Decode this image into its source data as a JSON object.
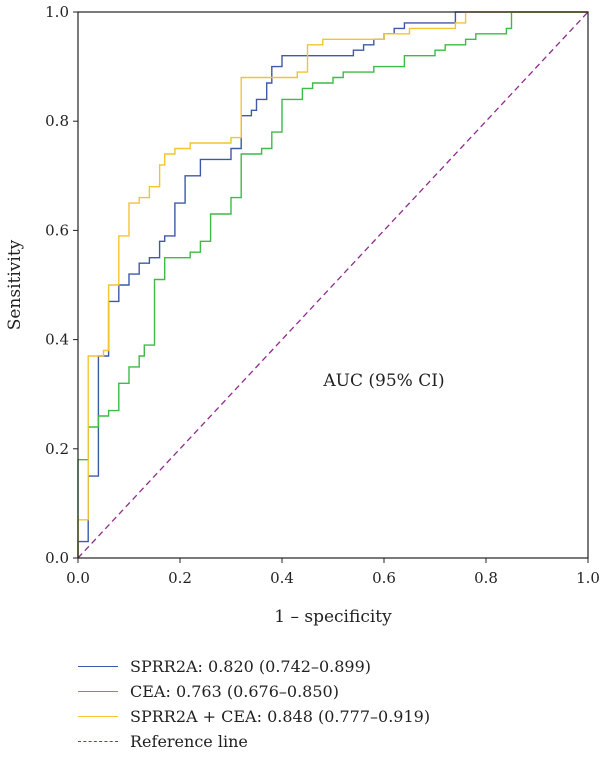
{
  "chart_data": {
    "type": "line",
    "xlabel": "1 – specificity",
    "ylabel": "Sensitivity",
    "xlim": [
      0,
      1
    ],
    "ylim": [
      0,
      1
    ],
    "xticks": [
      "0.0",
      "0.2",
      "0.4",
      "0.6",
      "0.8",
      "1.0"
    ],
    "yticks": [
      "0.0",
      "0.2",
      "0.4",
      "0.6",
      "0.8",
      "1.0"
    ],
    "annotation": "AUC (95% CI)",
    "grid": false,
    "legend_position": "bottom",
    "series": [
      {
        "name": "SPRR2A: 0.820 (0.742–0.899)",
        "color": "#3c5aa8",
        "x": [
          0.0,
          0.0,
          0.02,
          0.02,
          0.04,
          0.04,
          0.06,
          0.06,
          0.08,
          0.08,
          0.1,
          0.1,
          0.12,
          0.12,
          0.14,
          0.14,
          0.16,
          0.16,
          0.17,
          0.17,
          0.19,
          0.19,
          0.21,
          0.21,
          0.24,
          0.24,
          0.3,
          0.3,
          0.32,
          0.32,
          0.34,
          0.34,
          0.35,
          0.35,
          0.37,
          0.37,
          0.38,
          0.38,
          0.4,
          0.4,
          0.54,
          0.54,
          0.56,
          0.56,
          0.58,
          0.58,
          0.6,
          0.6,
          0.62,
          0.62,
          0.64,
          0.64,
          0.74,
          0.74,
          1.0
        ],
        "y": [
          0.0,
          0.03,
          0.03,
          0.15,
          0.15,
          0.37,
          0.37,
          0.47,
          0.47,
          0.5,
          0.5,
          0.52,
          0.52,
          0.54,
          0.54,
          0.55,
          0.55,
          0.58,
          0.58,
          0.59,
          0.59,
          0.65,
          0.65,
          0.7,
          0.7,
          0.73,
          0.73,
          0.75,
          0.75,
          0.81,
          0.81,
          0.82,
          0.82,
          0.84,
          0.84,
          0.87,
          0.87,
          0.9,
          0.9,
          0.92,
          0.92,
          0.93,
          0.93,
          0.94,
          0.94,
          0.95,
          0.95,
          0.96,
          0.96,
          0.97,
          0.97,
          0.98,
          0.98,
          1.0,
          1.0
        ]
      },
      {
        "name": "CEA: 0.763 (0.676–0.850)",
        "color": "#3dbb45",
        "x": [
          0.0,
          0.0,
          0.02,
          0.02,
          0.04,
          0.04,
          0.06,
          0.06,
          0.08,
          0.08,
          0.1,
          0.1,
          0.12,
          0.12,
          0.13,
          0.13,
          0.15,
          0.15,
          0.17,
          0.17,
          0.22,
          0.22,
          0.24,
          0.24,
          0.26,
          0.26,
          0.3,
          0.3,
          0.32,
          0.32,
          0.36,
          0.36,
          0.38,
          0.38,
          0.4,
          0.4,
          0.44,
          0.44,
          0.46,
          0.46,
          0.5,
          0.5,
          0.52,
          0.52,
          0.54,
          0.54,
          0.58,
          0.58,
          0.6,
          0.6,
          0.64,
          0.64,
          0.7,
          0.7,
          0.72,
          0.72,
          0.76,
          0.76,
          0.78,
          0.78,
          0.84,
          0.84,
          0.85,
          0.85,
          1.0
        ],
        "y": [
          0.0,
          0.18,
          0.18,
          0.24,
          0.24,
          0.26,
          0.26,
          0.27,
          0.27,
          0.32,
          0.32,
          0.35,
          0.35,
          0.37,
          0.37,
          0.39,
          0.39,
          0.51,
          0.51,
          0.55,
          0.55,
          0.56,
          0.56,
          0.58,
          0.58,
          0.63,
          0.63,
          0.66,
          0.66,
          0.74,
          0.74,
          0.75,
          0.75,
          0.78,
          0.78,
          0.84,
          0.84,
          0.86,
          0.86,
          0.87,
          0.87,
          0.88,
          0.88,
          0.89,
          0.89,
          0.89,
          0.89,
          0.9,
          0.9,
          0.9,
          0.9,
          0.92,
          0.92,
          0.93,
          0.93,
          0.94,
          0.94,
          0.95,
          0.95,
          0.96,
          0.96,
          0.97,
          0.97,
          1.0,
          1.0
        ]
      },
      {
        "name": "SPRR2A + CEA: 0.848 (0.777–0.919)",
        "color": "#f4c430",
        "x": [
          0.0,
          0.0,
          0.02,
          0.02,
          0.05,
          0.05,
          0.06,
          0.06,
          0.08,
          0.08,
          0.1,
          0.1,
          0.12,
          0.12,
          0.14,
          0.14,
          0.16,
          0.16,
          0.17,
          0.17,
          0.19,
          0.19,
          0.22,
          0.22,
          0.3,
          0.3,
          0.32,
          0.32,
          0.42,
          0.42,
          0.43,
          0.43,
          0.45,
          0.45,
          0.48,
          0.48,
          0.6,
          0.6,
          0.65,
          0.65,
          0.74,
          0.74,
          0.76,
          0.76,
          1.0
        ],
        "y": [
          0.0,
          0.07,
          0.07,
          0.37,
          0.37,
          0.38,
          0.38,
          0.5,
          0.5,
          0.59,
          0.59,
          0.65,
          0.65,
          0.66,
          0.66,
          0.68,
          0.68,
          0.72,
          0.72,
          0.74,
          0.74,
          0.75,
          0.75,
          0.76,
          0.76,
          0.77,
          0.77,
          0.88,
          0.88,
          0.88,
          0.88,
          0.89,
          0.89,
          0.94,
          0.94,
          0.95,
          0.95,
          0.96,
          0.96,
          0.97,
          0.97,
          0.98,
          0.98,
          1.0,
          1.0
        ]
      },
      {
        "name": "Reference line",
        "color": "#8e2a8e",
        "dashed": true,
        "x": [
          0,
          1
        ],
        "y": [
          0,
          1
        ]
      }
    ]
  }
}
